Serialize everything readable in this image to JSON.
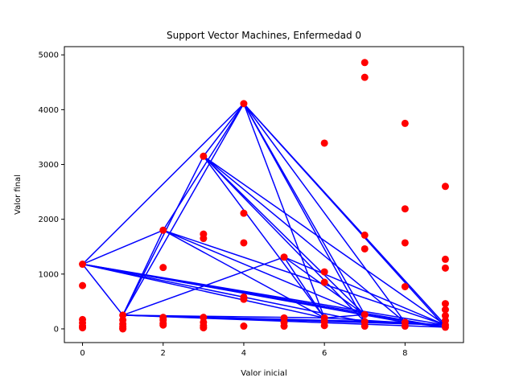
{
  "chart_data": {
    "type": "scatter",
    "title": "Support Vector Machines, Enfermedad 0",
    "xlabel": "Valor inicial",
    "ylabel": "Valor final",
    "xlim": [
      -0.45,
      9.45
    ],
    "ylim": [
      -250,
      5150
    ],
    "xticks": [
      0,
      2,
      4,
      6,
      8
    ],
    "yticks": [
      0,
      1000,
      2000,
      3000,
      4000,
      5000
    ],
    "grid": false,
    "colors": {
      "points": "#ff0000",
      "lines": "#0000ff"
    },
    "points": [
      [
        0,
        1180
      ],
      [
        0,
        790
      ],
      [
        0,
        170
      ],
      [
        0,
        110
      ],
      [
        0,
        50
      ],
      [
        0,
        20
      ],
      [
        1,
        250
      ],
      [
        1,
        160
      ],
      [
        1,
        90
      ],
      [
        1,
        40
      ],
      [
        1,
        10
      ],
      [
        1,
        0
      ],
      [
        2,
        1800
      ],
      [
        2,
        1120
      ],
      [
        2,
        210
      ],
      [
        2,
        160
      ],
      [
        2,
        100
      ],
      [
        2,
        70
      ],
      [
        3,
        3150
      ],
      [
        3,
        1730
      ],
      [
        3,
        1650
      ],
      [
        3,
        210
      ],
      [
        3,
        120
      ],
      [
        3,
        60
      ],
      [
        3,
        20
      ],
      [
        4,
        4110
      ],
      [
        4,
        2110
      ],
      [
        4,
        1570
      ],
      [
        4,
        580
      ],
      [
        4,
        540
      ],
      [
        4,
        50
      ],
      [
        5,
        1310
      ],
      [
        5,
        200
      ],
      [
        5,
        120
      ],
      [
        5,
        50
      ],
      [
        6,
        3390
      ],
      [
        6,
        1040
      ],
      [
        6,
        850
      ],
      [
        6,
        200
      ],
      [
        6,
        130
      ],
      [
        6,
        60
      ],
      [
        7,
        4860
      ],
      [
        7,
        4590
      ],
      [
        7,
        1710
      ],
      [
        7,
        1460
      ],
      [
        7,
        260
      ],
      [
        7,
        130
      ],
      [
        7,
        50
      ],
      [
        8,
        3750
      ],
      [
        8,
        2190
      ],
      [
        8,
        1570
      ],
      [
        8,
        770
      ],
      [
        8,
        120
      ],
      [
        8,
        50
      ],
      [
        9,
        2600
      ],
      [
        9,
        1270
      ],
      [
        9,
        1110
      ],
      [
        9,
        460
      ],
      [
        9,
        350
      ],
      [
        9,
        240
      ],
      [
        9,
        150
      ],
      [
        9,
        70
      ],
      [
        9,
        30
      ]
    ],
    "segments": [
      [
        [
          0,
          1180
        ],
        [
          4,
          4110
        ]
      ],
      [
        [
          0,
          1180
        ],
        [
          2,
          1800
        ]
      ],
      [
        [
          0,
          1180
        ],
        [
          1,
          250
        ]
      ],
      [
        [
          0,
          1180
        ],
        [
          7,
          260
        ]
      ],
      [
        [
          0,
          1180
        ],
        [
          7,
          130
        ]
      ],
      [
        [
          0,
          1180
        ],
        [
          8,
          120
        ]
      ],
      [
        [
          0,
          1180
        ],
        [
          9,
          70
        ]
      ],
      [
        [
          0,
          1180
        ],
        [
          9,
          30
        ]
      ],
      [
        [
          0,
          1180
        ],
        [
          6,
          200
        ]
      ],
      [
        [
          1,
          250
        ],
        [
          4,
          4110
        ]
      ],
      [
        [
          1,
          250
        ],
        [
          3,
          3150
        ]
      ],
      [
        [
          1,
          250
        ],
        [
          2,
          1800
        ]
      ],
      [
        [
          1,
          250
        ],
        [
          5,
          1310
        ]
      ],
      [
        [
          1,
          250
        ],
        [
          9,
          70
        ]
      ],
      [
        [
          1,
          250
        ],
        [
          9,
          30
        ]
      ],
      [
        [
          1,
          250
        ],
        [
          7,
          130
        ]
      ],
      [
        [
          1,
          250
        ],
        [
          8,
          120
        ]
      ],
      [
        [
          1,
          250
        ],
        [
          6,
          200
        ]
      ],
      [
        [
          2,
          1800
        ],
        [
          4,
          4110
        ]
      ],
      [
        [
          2,
          1800
        ],
        [
          7,
          260
        ]
      ],
      [
        [
          2,
          1800
        ],
        [
          9,
          70
        ]
      ],
      [
        [
          2,
          1800
        ],
        [
          6,
          200
        ]
      ],
      [
        [
          3,
          3150
        ],
        [
          4,
          4110
        ]
      ],
      [
        [
          3,
          3150
        ],
        [
          7,
          260
        ]
      ],
      [
        [
          3,
          3150
        ],
        [
          9,
          70
        ]
      ],
      [
        [
          3,
          3150
        ],
        [
          6,
          200
        ]
      ],
      [
        [
          3,
          3150
        ],
        [
          8,
          120
        ]
      ],
      [
        [
          3,
          3150
        ],
        [
          7,
          130
        ]
      ],
      [
        [
          4,
          4110
        ],
        [
          6,
          200
        ]
      ],
      [
        [
          4,
          4110
        ],
        [
          7,
          260
        ]
      ],
      [
        [
          4,
          4110
        ],
        [
          7,
          130
        ]
      ],
      [
        [
          4,
          4110
        ],
        [
          8,
          120
        ]
      ],
      [
        [
          4,
          4110
        ],
        [
          9,
          70
        ]
      ],
      [
        [
          4,
          4110
        ],
        [
          9,
          30
        ]
      ],
      [
        [
          5,
          1310
        ],
        [
          7,
          260
        ]
      ],
      [
        [
          5,
          1310
        ],
        [
          9,
          70
        ]
      ],
      [
        [
          5,
          1310
        ],
        [
          6,
          200
        ]
      ],
      [
        [
          6,
          200
        ],
        [
          7,
          260
        ]
      ],
      [
        [
          6,
          200
        ],
        [
          9,
          70
        ]
      ],
      [
        [
          7,
          260
        ],
        [
          9,
          30
        ]
      ],
      [
        [
          7,
          130
        ],
        [
          9,
          70
        ]
      ],
      [
        [
          8,
          120
        ],
        [
          9,
          30
        ]
      ]
    ]
  }
}
